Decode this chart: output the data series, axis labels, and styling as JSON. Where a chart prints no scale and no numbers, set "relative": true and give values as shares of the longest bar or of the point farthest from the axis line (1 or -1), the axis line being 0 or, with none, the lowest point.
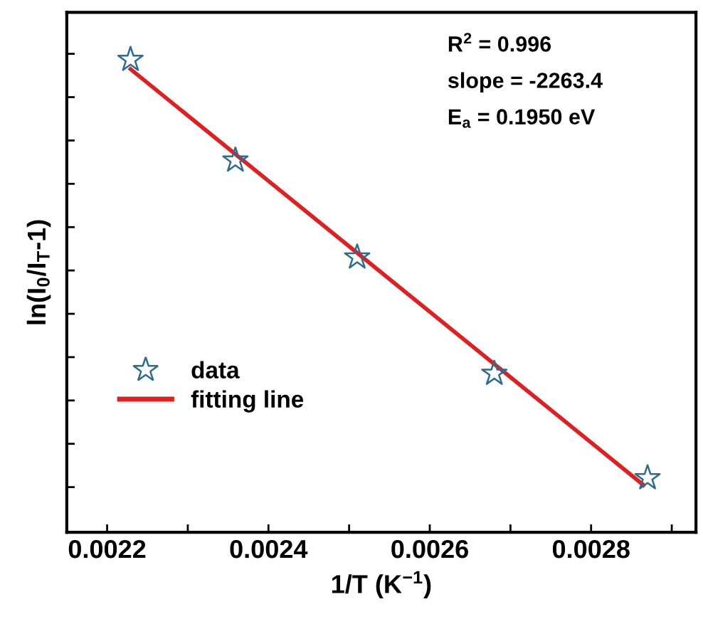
{
  "chart_data": {
    "type": "scatter",
    "relative": true,
    "xlabel": "1/T (K$^{−1}$)",
    "ylabel": "ln(I$_{0}$/I$_{T}$-1)",
    "xlim": [
      0.00215,
      0.00293
    ],
    "xticks": [
      0.0022,
      {
        "value": 0.0023,
        "label": null
      },
      0.0024,
      {
        "value": 0.0025,
        "label": null
      },
      0.0026,
      {
        "value": 0.0027,
        "label": null
      },
      0.0028,
      {
        "value": 0.0029,
        "label": null
      }
    ],
    "tick_labels": "x",
    "legend": "left",
    "annotations": [
      "R$^{2}$ = 0.996",
      "slope = -2263.4",
      "E$_{a}$ = 0.1950 eV"
    ],
    "series": [
      {
        "name": "data",
        "marker": "star",
        "color": "#2b6c8f",
        "x": [
          0.002229,
          0.002359,
          0.00251,
          0.00268,
          0.00287
        ],
        "values": [
          1,
          0.787,
          0.582,
          0.336,
          0.115
        ]
      },
      {
        "name": "fitting line",
        "type": "line",
        "marker": "none",
        "color": "#e02020",
        "line_style": "solid",
        "x": [
          0.002229,
          0.002865
        ],
        "values": [
          0.98,
          0.1
        ]
      }
    ]
  }
}
